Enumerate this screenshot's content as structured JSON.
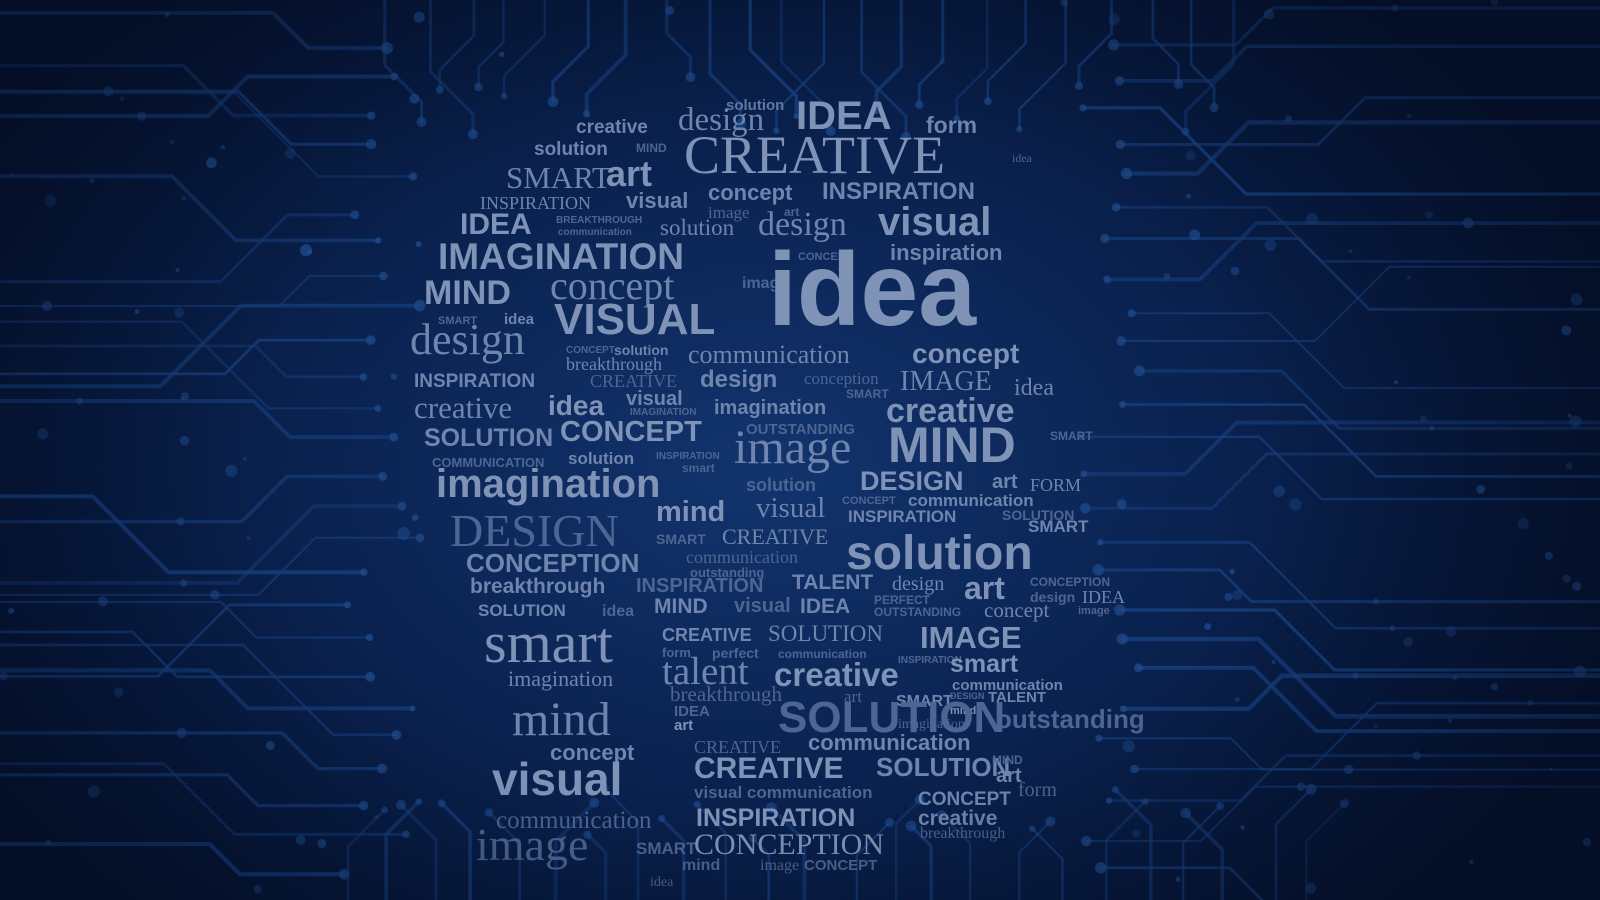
{
  "scene": {
    "description_free": true,
    "colors": {
      "background": "#071637",
      "circuit_trace": "#17407f",
      "circuit_pad": "#1f4d8f",
      "words": "#6f85ad"
    }
  },
  "words": [
    {
      "text": "solution",
      "style": "s mid"
    },
    {
      "text": "creative",
      "style": "s"
    },
    {
      "text": "design",
      "style": "r"
    },
    {
      "text": "IDEA",
      "style": "s hi"
    },
    {
      "text": "form",
      "style": "s"
    },
    {
      "text": "solution",
      "style": "s"
    },
    {
      "text": "MIND",
      "style": "s dim"
    },
    {
      "text": "CREATIVE",
      "style": "r hi"
    },
    {
      "text": "SMART",
      "style": "r"
    },
    {
      "text": "art",
      "style": "s hi"
    },
    {
      "text": "concept",
      "style": "s"
    },
    {
      "text": "INSPIRATION",
      "style": "s"
    },
    {
      "text": "idea",
      "style": "r dim"
    },
    {
      "text": "INSPIRATION",
      "style": "r"
    },
    {
      "text": "visual",
      "style": "s"
    },
    {
      "text": "image",
      "style": "r dim"
    },
    {
      "text": "art",
      "style": "s dim"
    },
    {
      "text": "IDEA",
      "style": "s hi"
    },
    {
      "text": "BREAKTHROUGH",
      "style": "s dim"
    },
    {
      "text": "communication",
      "style": "s dim"
    },
    {
      "text": "solution",
      "style": "r"
    },
    {
      "text": "design",
      "style": "r"
    },
    {
      "text": "visual",
      "style": "s hi"
    },
    {
      "text": "IMAGINATION",
      "style": "s hi"
    },
    {
      "text": "CONCEPT",
      "style": "s dim"
    },
    {
      "text": "inspiration",
      "style": "s"
    },
    {
      "text": "MIND",
      "style": "s hi"
    },
    {
      "text": "concept",
      "style": "r"
    },
    {
      "text": "image",
      "style": "s dim"
    },
    {
      "text": "idea",
      "style": "s hi"
    },
    {
      "text": "SMART",
      "style": "s dim"
    },
    {
      "text": "idea",
      "style": "s"
    },
    {
      "text": "VISUAL",
      "style": "s hi"
    },
    {
      "text": "design",
      "style": "r"
    },
    {
      "text": "CONCEPT",
      "style": "s dim"
    },
    {
      "text": "solution",
      "style": "s"
    },
    {
      "text": "breakthrough",
      "style": "r"
    },
    {
      "text": "communication",
      "style": "r"
    },
    {
      "text": "concept",
      "style": "s hi"
    },
    {
      "text": "INSPIRATION",
      "style": "s"
    },
    {
      "text": "CREATIVE",
      "style": "r dim"
    },
    {
      "text": "design",
      "style": "s"
    },
    {
      "text": "conception",
      "style": "r dim"
    },
    {
      "text": "IMAGE",
      "style": "r"
    },
    {
      "text": "idea",
      "style": "r"
    },
    {
      "text": "SMART",
      "style": "s dim"
    },
    {
      "text": "creative",
      "style": "r"
    },
    {
      "text": "idea",
      "style": "s hi"
    },
    {
      "text": "visual",
      "style": "s"
    },
    {
      "text": "IMAGINATION",
      "style": "s dim"
    },
    {
      "text": "imagination",
      "style": "s"
    },
    {
      "text": "creative",
      "style": "s hi"
    },
    {
      "text": "SOLUTION",
      "style": "s"
    },
    {
      "text": "CONCEPT",
      "style": "s hi"
    },
    {
      "text": "OUTSTANDING",
      "style": "s dim"
    },
    {
      "text": "image",
      "style": "r"
    },
    {
      "text": "MIND",
      "style": "s hi"
    },
    {
      "text": "SMART",
      "style": "s dim"
    },
    {
      "text": "COMMUNICATION",
      "style": "s dim"
    },
    {
      "text": "solution",
      "style": "s"
    },
    {
      "text": "INSPIRATION",
      "style": "s dim"
    },
    {
      "text": "smart",
      "style": "s dim"
    },
    {
      "text": "imagination",
      "style": "s hi"
    },
    {
      "text": "solution",
      "style": "s dim"
    },
    {
      "text": "DESIGN",
      "style": "s hi"
    },
    {
      "text": "art",
      "style": "s"
    },
    {
      "text": "FORM",
      "style": "r"
    },
    {
      "text": "CONCEPT",
      "style": "s dim"
    },
    {
      "text": "communication",
      "style": "s"
    },
    {
      "text": "INSPIRATION",
      "style": "s"
    },
    {
      "text": "SOLUTION",
      "style": "s dim"
    },
    {
      "text": "SMART",
      "style": "s"
    },
    {
      "text": "DESIGN",
      "style": "r dim"
    },
    {
      "text": "mind",
      "style": "s hi"
    },
    {
      "text": "visual",
      "style": "r"
    },
    {
      "text": "SMART",
      "style": "s dim"
    },
    {
      "text": "CREATIVE",
      "style": "r"
    },
    {
      "text": "solution",
      "style": "s hi"
    },
    {
      "text": "communication",
      "style": "r dim"
    },
    {
      "text": "CONCEPTION",
      "style": "s"
    },
    {
      "text": "outstanding",
      "style": "s dim"
    },
    {
      "text": "breakthrough",
      "style": "s"
    },
    {
      "text": "INSPIRATION",
      "style": "s dim"
    },
    {
      "text": "TALENT",
      "style": "s"
    },
    {
      "text": "design",
      "style": "r"
    },
    {
      "text": "art",
      "style": "s hi"
    },
    {
      "text": "CONCEPTION",
      "style": "s dim"
    },
    {
      "text": "SOLUTION",
      "style": "s"
    },
    {
      "text": "idea",
      "style": "s dim"
    },
    {
      "text": "MIND",
      "style": "s"
    },
    {
      "text": "visual",
      "style": "s dim"
    },
    {
      "text": "IDEA",
      "style": "s"
    },
    {
      "text": "PERFECT",
      "style": "s dim"
    },
    {
      "text": "OUTSTANDING",
      "style": "s dim"
    },
    {
      "text": "concept",
      "style": "r"
    },
    {
      "text": "design",
      "style": "s dim"
    },
    {
      "text": "IDEA",
      "style": "r"
    },
    {
      "text": "image",
      "style": "s dim"
    },
    {
      "text": "smart",
      "style": "r hi"
    },
    {
      "text": "CREATIVE",
      "style": "s"
    },
    {
      "text": "SOLUTION",
      "style": "r"
    },
    {
      "text": "IMAGE",
      "style": "s hi"
    },
    {
      "text": "form",
      "style": "s dim"
    },
    {
      "text": "perfect",
      "style": "s dim"
    },
    {
      "text": "communication",
      "style": "s dim"
    },
    {
      "text": "talent",
      "style": "r"
    },
    {
      "text": "creative",
      "style": "s hi"
    },
    {
      "text": "INSPIRATION",
      "style": "s dim"
    },
    {
      "text": "smart",
      "style": "s hi"
    },
    {
      "text": "imagination",
      "style": "r"
    },
    {
      "text": "communication",
      "style": "s"
    },
    {
      "text": "breakthrough",
      "style": "r dim"
    },
    {
      "text": "art",
      "style": "r dim"
    },
    {
      "text": "SMART",
      "style": "s"
    },
    {
      "text": "DESIGN",
      "style": "s dim"
    },
    {
      "text": "TALENT",
      "style": "s"
    },
    {
      "text": "mind",
      "style": "s hi"
    },
    {
      "text": "outstanding",
      "style": "s dim"
    },
    {
      "text": "imagination",
      "style": "r dim"
    },
    {
      "text": "mind",
      "style": "r"
    },
    {
      "text": "IDEA",
      "style": "s dim"
    },
    {
      "text": "art",
      "style": "s hi"
    },
    {
      "text": "SOLUTION",
      "style": "s dim"
    },
    {
      "text": "concept",
      "style": "s"
    },
    {
      "text": "CREATIVE",
      "style": "r dim"
    },
    {
      "text": "communication",
      "style": "s"
    },
    {
      "text": "visual",
      "style": "s hi"
    },
    {
      "text": "CREATIVE",
      "style": "s hi"
    },
    {
      "text": "SOLUTION",
      "style": "s"
    },
    {
      "text": "MIND",
      "style": "s dim"
    },
    {
      "text": "art",
      "style": "s"
    },
    {
      "text": "visual communication",
      "style": "s dim"
    },
    {
      "text": "CONCEPT",
      "style": "s"
    },
    {
      "text": "communication",
      "style": "r dim"
    },
    {
      "text": "INSPIRATION",
      "style": "s hi"
    },
    {
      "text": "creative",
      "style": "s"
    },
    {
      "text": "form",
      "style": "r dim"
    },
    {
      "text": "breakthrough",
      "style": "r dim"
    },
    {
      "text": "image",
      "style": "r dim"
    },
    {
      "text": "SMART",
      "style": "s dim"
    },
    {
      "text": "CONCEPTION",
      "style": "r hi"
    },
    {
      "text": "mind",
      "style": "s dim"
    },
    {
      "text": "image",
      "style": "r dim"
    },
    {
      "text": "CONCEPT",
      "style": "s dim"
    },
    {
      "text": "idea",
      "style": "r dim"
    }
  ]
}
